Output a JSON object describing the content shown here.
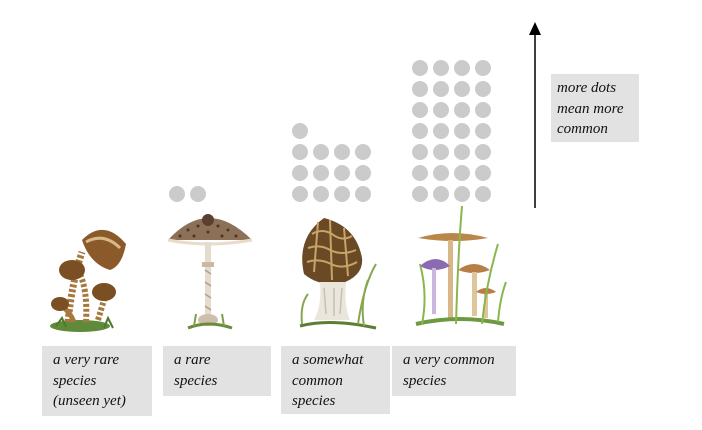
{
  "species": [
    {
      "label": "a very rare\nspecies\n(unseen yet)",
      "dots": 0
    },
    {
      "label": "a rare\nspecies",
      "dots": 2
    },
    {
      "label": "a somewhat\ncommon\nspecies",
      "dots": 13
    },
    {
      "label": "a very common\nspecies",
      "dots": 28
    }
  ],
  "legend": {
    "note": "more dots\nmean more\ncommon"
  },
  "colors": {
    "dot": "#cbcbcb",
    "label_bg": "#e2e2e2",
    "text": "#111111"
  },
  "icons": [
    "clustered-mushrooms-icon",
    "parasol-mushroom-icon",
    "morel-mushroom-icon",
    "grass-mushrooms-icon",
    "up-arrow-icon"
  ]
}
